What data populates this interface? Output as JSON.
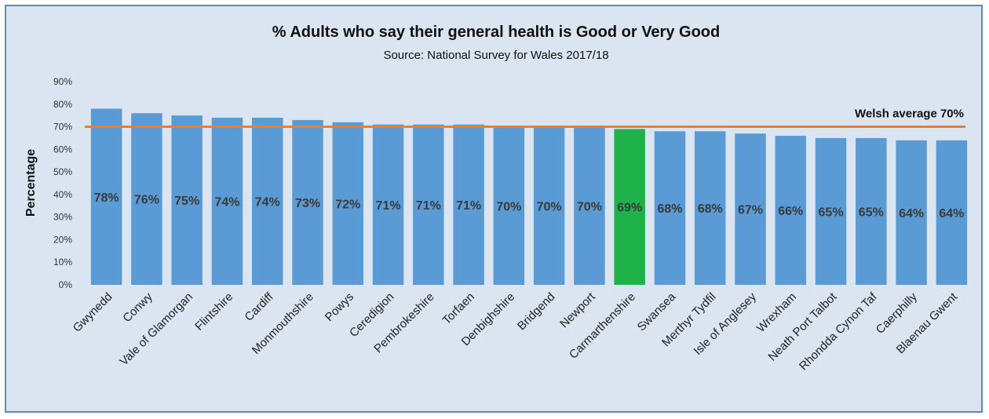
{
  "chart_data": {
    "type": "bar",
    "title": "% Adults who say their general health is Good or Very Good",
    "subtitle": "Source: National Survey for Wales 2017/18",
    "ylabel": "Percentage",
    "xlabel": "",
    "ylim": [
      0,
      90
    ],
    "yticks": [
      "0%",
      "10%",
      "20%",
      "30%",
      "40%",
      "50%",
      "60%",
      "70%",
      "80%",
      "90%"
    ],
    "categories": [
      "Gwynedd",
      "Conwy",
      "Vale of Glamorgan",
      "Flintshire",
      "Cardiff",
      "Monmouthshire",
      "Powys",
      "Ceredigion",
      "Pembrokeshire",
      "Torfaen",
      "Denbighshire",
      "Bridgend",
      "Newport",
      "Carmarthenshire",
      "Swansea",
      "Merthyr Tydfil",
      "Isle of Anglesey",
      "Wrexham",
      "Neath Port Talbot",
      "Rhondda Cynon Taf",
      "Caerphilly",
      "Blaenau Gwent"
    ],
    "values": [
      78,
      76,
      75,
      74,
      74,
      73,
      72,
      71,
      71,
      71,
      70,
      70,
      70,
      69,
      68,
      68,
      67,
      66,
      65,
      65,
      64,
      64
    ],
    "value_labels": [
      "78%",
      "76%",
      "75%",
      "74%",
      "74%",
      "73%",
      "72%",
      "71%",
      "71%",
      "71%",
      "70%",
      "70%",
      "70%",
      "69%",
      "68%",
      "68%",
      "67%",
      "66%",
      "65%",
      "65%",
      "64%",
      "64%"
    ],
    "highlight_category": "Carmarthenshire",
    "reference_line": {
      "value": 70,
      "label": "Welsh average 70%"
    },
    "grid": false,
    "colors": {
      "bar": "#5b9bd5",
      "highlight": "#1fb24a",
      "average_line": "#ed7d31",
      "background": "#dae5f1",
      "border": "#5b89c1"
    }
  }
}
